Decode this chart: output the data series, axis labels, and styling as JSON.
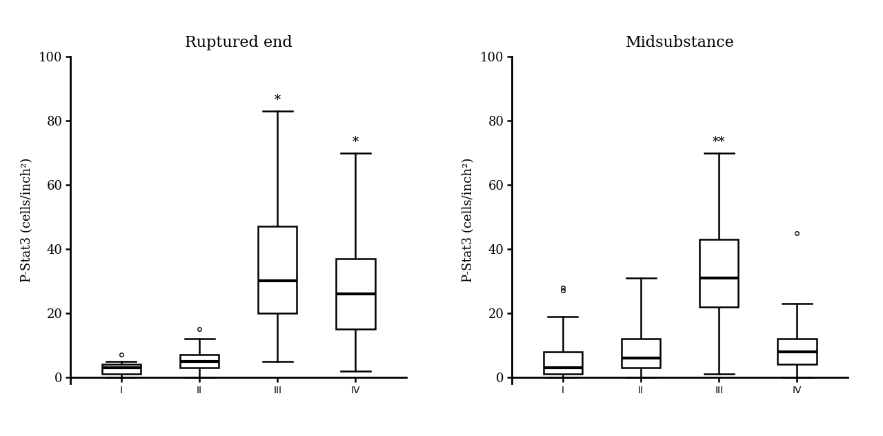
{
  "left_title": "Ruptured end",
  "right_title": "Midsubstance",
  "ylabel": "P-Stat3 (cells/inch²)",
  "ylim": [
    -2,
    100
  ],
  "yticks": [
    0,
    20,
    40,
    60,
    80,
    100
  ],
  "xlabels": [
    "I",
    "II",
    "III",
    "IV"
  ],
  "left": {
    "medians": [
      3,
      5,
      30,
      26
    ],
    "q1": [
      1,
      3,
      20,
      15
    ],
    "q3": [
      4,
      7,
      47,
      37
    ],
    "whisker_low": [
      0,
      0,
      5,
      2
    ],
    "whisker_high": [
      5,
      12,
      83,
      70
    ],
    "outliers": [
      [
        7
      ],
      [
        15
      ],
      [],
      []
    ],
    "sig": [
      "",
      "",
      "*",
      "*"
    ]
  },
  "right": {
    "medians": [
      3,
      6,
      31,
      8
    ],
    "q1": [
      1,
      3,
      22,
      4
    ],
    "q3": [
      8,
      12,
      43,
      12
    ],
    "whisker_low": [
      0,
      0,
      1,
      0
    ],
    "whisker_high": [
      19,
      31,
      70,
      23
    ],
    "outliers": [
      [
        27,
        28
      ],
      [],
      [],
      [
        45
      ]
    ],
    "sig": [
      "",
      "",
      "**",
      ""
    ]
  },
  "box_width": 0.5,
  "linewidth": 1.8,
  "median_linewidth": 3.0,
  "background_color": "#ffffff",
  "box_color": "#000000",
  "sig_fontsize": 13,
  "title_fontsize": 16,
  "label_fontsize": 13,
  "tick_fontsize": 13
}
